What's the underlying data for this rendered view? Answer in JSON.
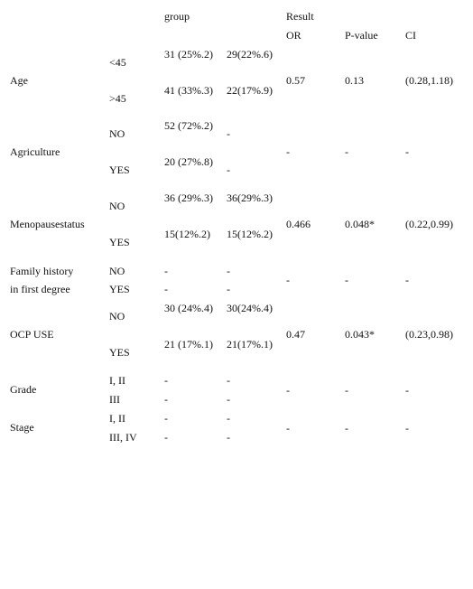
{
  "header": {
    "group": "group",
    "result": "Result",
    "or": "OR",
    "pvalue": "P-value",
    "ci": "CI"
  },
  "rows": [
    {
      "variable": "Age",
      "levels": [
        {
          "label": "<45",
          "g1": "31 (25%.2)",
          "g2": "29(22%.6)"
        },
        {
          "label": ">45",
          "g1": "41 (33%.3)",
          "g2": "22(17%.9)"
        }
      ],
      "or": "0.57",
      "p": "0.13",
      "ci": "(0.28,1.18)"
    },
    {
      "variable": "Agriculture",
      "levels": [
        {
          "label": "NO",
          "g1": "52 (72%.2)",
          "g2": "-"
        },
        {
          "label": "YES",
          "g1": "20 (27%.8)",
          "g2": "-"
        }
      ],
      "or": "-",
      "p": "-",
      "ci": "-"
    },
    {
      "variable": "Menopausestatus",
      "levels": [
        {
          "label": "NO",
          "g1": "36 (29%.3)",
          "g2": "36(29%.3)"
        },
        {
          "label": "YES",
          "g1": "15(12%.2)",
          "g2": "15(12%.2)"
        }
      ],
      "or": "0.466",
      "p": "0.048*",
      "ci": "(0.22,0.99)"
    },
    {
      "variable_line1": "Family history",
      "variable_line2": "in first degree",
      "levels": [
        {
          "label": "NO",
          "g1": "-",
          "g2": "-"
        },
        {
          "label": "YES",
          "g1": "-",
          "g2": "-"
        }
      ],
      "or": "-",
      "p": "-",
      "ci": "-"
    },
    {
      "variable": "OCP USE",
      "levels": [
        {
          "label": "NO",
          "g1": "30 (24%.4)",
          "g2": "30(24%.4)"
        },
        {
          "label": "YES",
          "g1": "21 (17%.1)",
          "g2": "21(17%.1)"
        }
      ],
      "or": "0.47",
      "p": "0.043*",
      "ci": "(0.23,0.98)"
    },
    {
      "variable": "Grade",
      "levels": [
        {
          "label": "I, II",
          "g1": "-",
          "g2": "-"
        },
        {
          "label": "III",
          "g1": "-",
          "g2": "-"
        }
      ],
      "or": "-",
      "p": "-",
      "ci": "-"
    },
    {
      "variable": "Stage",
      "levels": [
        {
          "label": "I, II",
          "g1": "-",
          "g2": "-"
        },
        {
          "label": "III, IV",
          "g1": "-",
          "g2": "-"
        }
      ],
      "or": "-",
      "p": "-",
      "ci": "-"
    }
  ]
}
